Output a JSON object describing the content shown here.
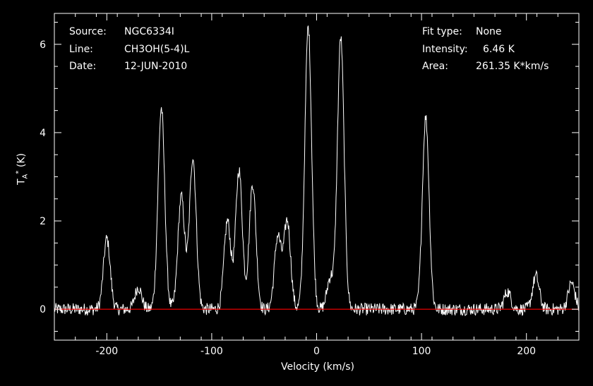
{
  "header": {
    "source_label": "Source:",
    "source_value": "NGC6334I",
    "line_label": "Line:",
    "line_value": "CH3OH(5-4)L",
    "date_label": "Date:",
    "date_value": "12-JUN-2010",
    "fit_label": "Fit type:",
    "fit_value": "None",
    "intensity_label": "Intensity:",
    "intensity_value": "6.46 K",
    "area_label": "Area:",
    "area_value": "261.35 K*km/s"
  },
  "colors": {
    "background": "#000000",
    "spectrum": "#ffffff",
    "baseline": "#ff0000",
    "axes": "#ffffff"
  },
  "chart_data": {
    "type": "line",
    "title": "",
    "xlabel": "Velocity (km/s)",
    "ylabel_main": "T",
    "ylabel_sub": "A",
    "ylabel_sup": "*",
    "ylabel_unit": "(K)",
    "xlim": [
      -250,
      250
    ],
    "ylim": [
      -0.7,
      6.7
    ],
    "xticks": [
      -200,
      -100,
      0,
      100,
      200
    ],
    "xtick_labels": [
      "-200",
      "-100",
      "0",
      "100",
      "200"
    ],
    "yticks": [
      0,
      2,
      4,
      6
    ],
    "ytick_labels": [
      "0",
      "2",
      "4",
      "6"
    ],
    "baseline": 0,
    "grid": false,
    "series": [
      {
        "style": "line",
        "peaks": [
          {
            "x": -200,
            "y": 1.6
          },
          {
            "x": -170,
            "y": 0.5
          },
          {
            "x": -148,
            "y": 4.55
          },
          {
            "x": -129,
            "y": 2.55
          },
          {
            "x": -118,
            "y": 3.45
          },
          {
            "x": -85,
            "y": 2.0
          },
          {
            "x": -74,
            "y": 3.15
          },
          {
            "x": -61,
            "y": 2.85
          },
          {
            "x": -37,
            "y": 1.65
          },
          {
            "x": -28,
            "y": 2.0
          },
          {
            "x": -8,
            "y": 6.4
          },
          {
            "x": 13,
            "y": 0.7
          },
          {
            "x": 23,
            "y": 6.15
          },
          {
            "x": 104,
            "y": 4.35
          },
          {
            "x": 182,
            "y": 0.4
          },
          {
            "x": 209,
            "y": 0.75
          },
          {
            "x": 243,
            "y": 0.6
          }
        ]
      }
    ]
  }
}
